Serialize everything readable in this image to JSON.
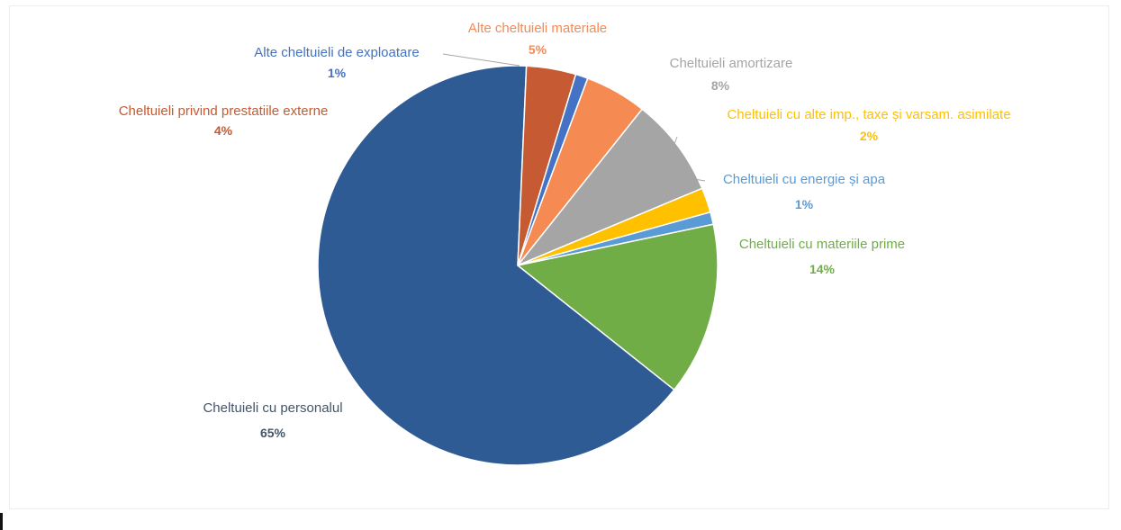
{
  "chart_data": {
    "type": "pie",
    "title": "",
    "slices": [
      {
        "label": "Cheltuieli cu energie și apa",
        "value": 1,
        "value_label": "1%",
        "color": "#5b9bd5"
      },
      {
        "label": "Cheltuieli cu materiile prime",
        "value": 14,
        "value_label": "14%",
        "color": "#70ad47"
      },
      {
        "label": "Cheltuieli cu personalul",
        "value": 65,
        "value_label": "65%",
        "color": "#2f5b94"
      },
      {
        "label": "Cheltuieli privind prestatiile externe",
        "value": 4,
        "value_label": "4%",
        "color": "#c55a33"
      },
      {
        "label": "Alte cheltuieli de exploatare",
        "value": 1,
        "value_label": "1%",
        "color": "#4472c4"
      },
      {
        "label": "Alte cheltuieli materiale",
        "value": 5,
        "value_label": "5%",
        "color": "#f58a53"
      },
      {
        "label": "Cheltuieli amortizare",
        "value": 8,
        "value_label": "8%",
        "color": "#a5a5a5"
      },
      {
        "label": "Cheltuieli cu alte imp., taxe și varsam. asimilate",
        "value": 2,
        "value_label": "2%",
        "color": "#ffc000"
      }
    ],
    "label_colors": {
      "Cheltuieli cu energie și apa": "#5b9bd5",
      "Cheltuieli cu materiile prime": "#70ad47",
      "Cheltuieli cu personalul": "#44546a",
      "Cheltuieli privind prestatiile externe": "#c55a33",
      "Alte cheltuieli de exploatare": "#4472c4",
      "Alte cheltuieli materiale": "#f58a53",
      "Cheltuieli amortizare": "#a5a5a5",
      "Cheltuieli cu alte imp., taxe și varsam. asimilate": "#ffc000"
    },
    "legend": "none"
  }
}
